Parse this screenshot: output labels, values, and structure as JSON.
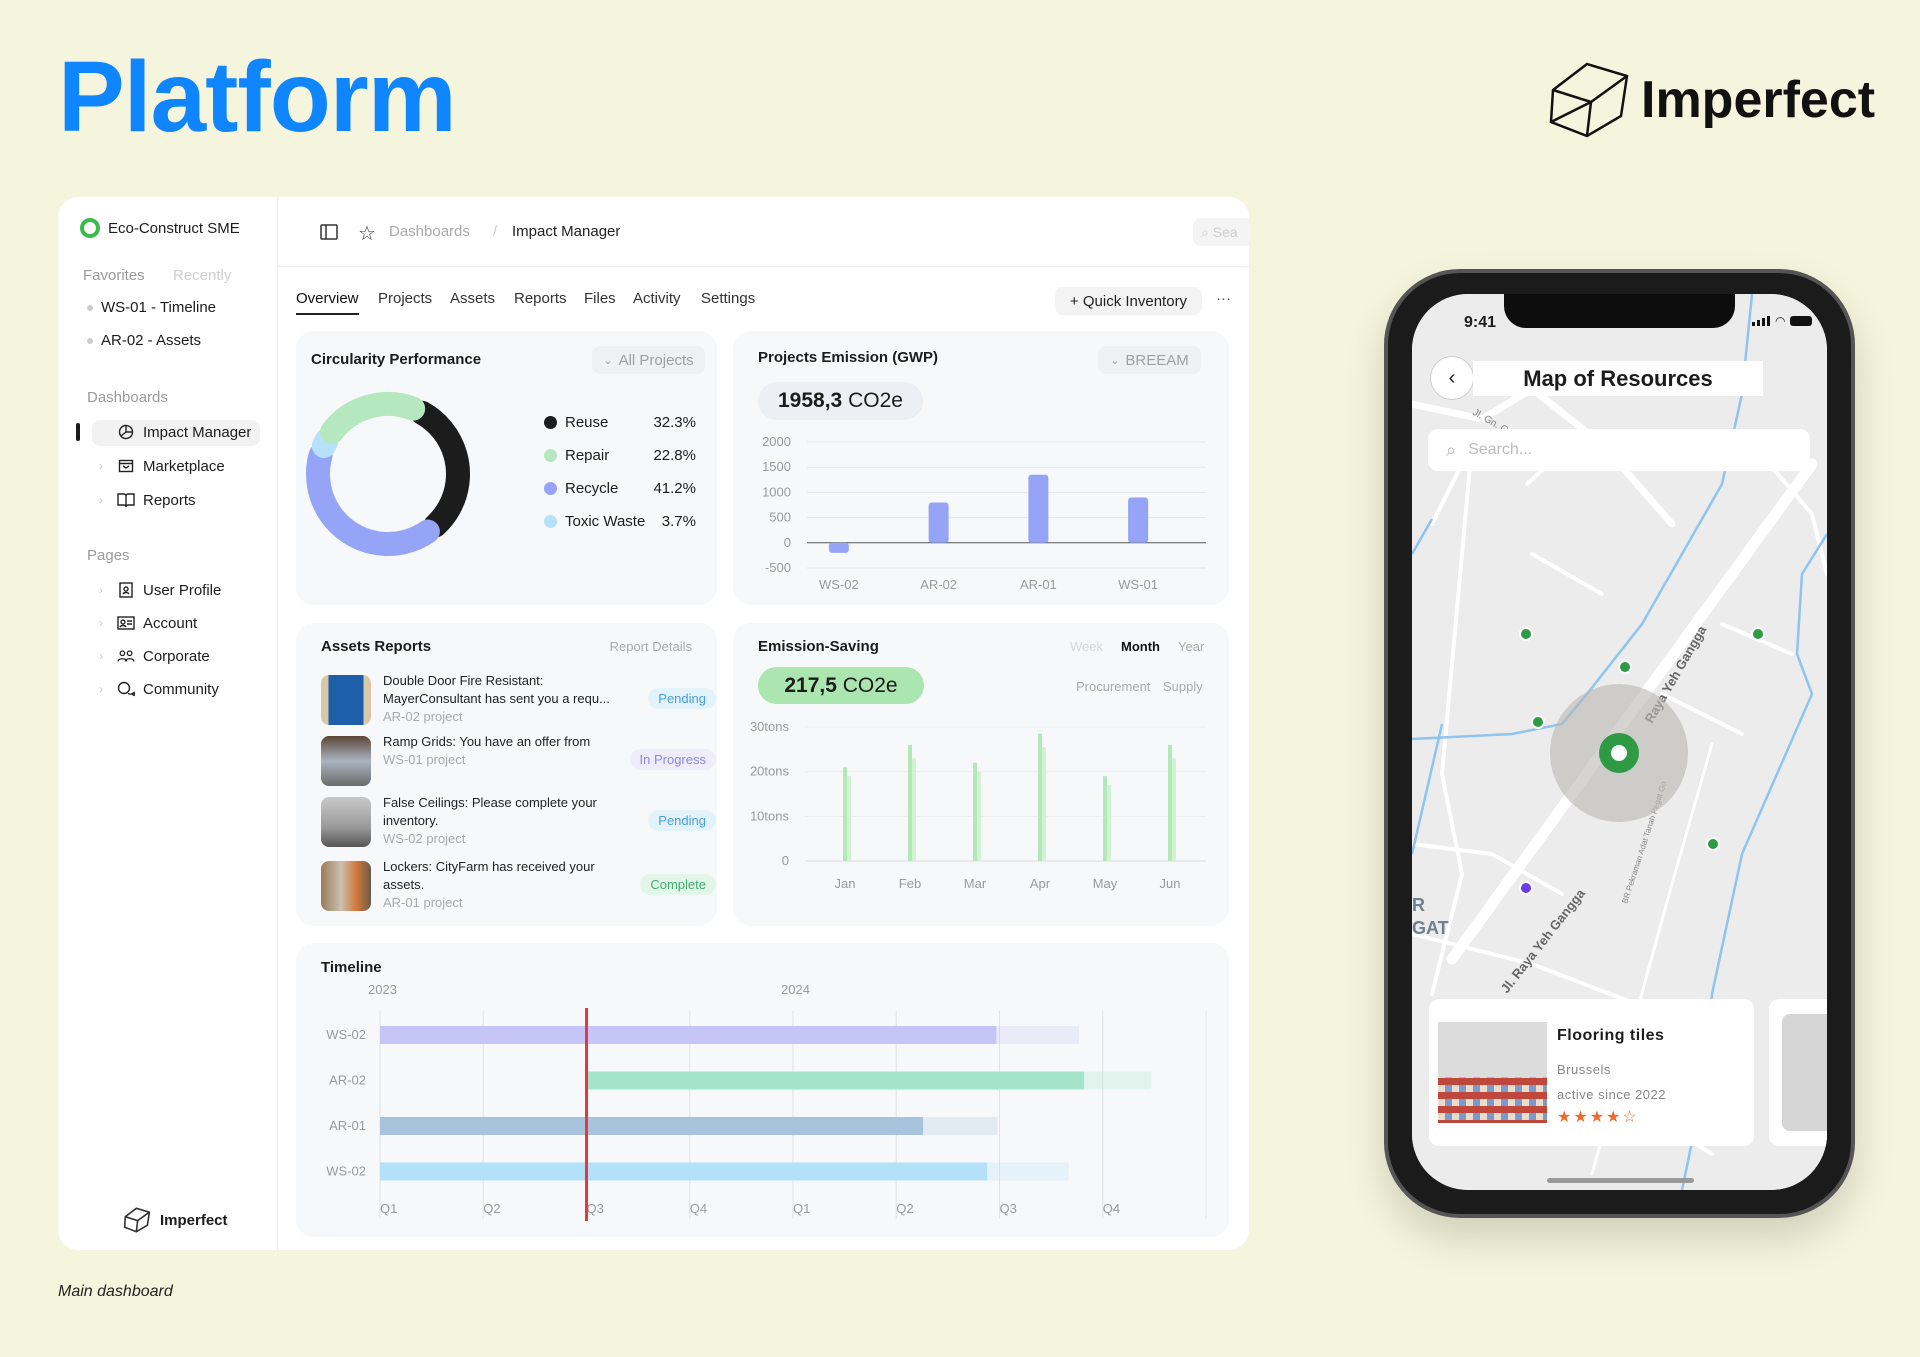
{
  "page": {
    "title": "Platform",
    "brand": "Imperfect",
    "caption": "Main dashboard"
  },
  "sidebar": {
    "org": "Eco-Construct SME",
    "tabs": [
      "Favorites",
      "Recently"
    ],
    "favorites": [
      "WS-01 - Timeline",
      "AR-02 - Assets"
    ],
    "dashboards_heading": "Dashboards",
    "dashboards": [
      {
        "label": "Impact Manager",
        "icon": "pie-chart-icon",
        "active": true
      },
      {
        "label": "Marketplace",
        "icon": "shop-icon"
      },
      {
        "label": "Reports",
        "icon": "book-icon"
      }
    ],
    "pages_heading": "Pages",
    "pages": [
      {
        "label": "User Profile",
        "icon": "id-badge-icon"
      },
      {
        "label": "Account",
        "icon": "id-card-icon"
      },
      {
        "label": "Corporate",
        "icon": "users-icon"
      },
      {
        "label": "Community",
        "icon": "chat-icon"
      }
    ],
    "footer_brand": "Imperfect"
  },
  "header": {
    "breadcrumb": [
      "Dashboards",
      "Impact Manager"
    ],
    "separator": "/",
    "search_placeholder": "Sea"
  },
  "tabs": [
    "Overview",
    "Projects",
    "Assets",
    "Reports",
    "Files",
    "Activity",
    "Settings"
  ],
  "actions": {
    "quick_inventory": "+ Quick Inventory",
    "more": "···"
  },
  "circularity": {
    "title": "Circularity Performance",
    "filter": "All Projects"
  },
  "emission": {
    "title": "Projects Emission (GWP)",
    "filter": "BREEAM",
    "total_value": "1958,3",
    "total_unit": " CO2e"
  },
  "assets": {
    "title": "Assets Reports",
    "link": "Report Details",
    "items": [
      {
        "title": "Double Door Fire Resistant:",
        "body": "MayerConsultant has sent you a requ...",
        "project": "AR-02 project",
        "status": "Pending"
      },
      {
        "title": "Ramp Grids: You have an offer from",
        "body": "",
        "project": "WS-01 project",
        "status": "In Progress"
      },
      {
        "title": "False Ceilings: Please complete your",
        "body": "inventory.",
        "project": "WS-02 project",
        "status": "Pending"
      },
      {
        "title": "Lockers: CityFarm has received your",
        "body": "assets.",
        "project": "AR-01 project",
        "status": "Complete"
      }
    ]
  },
  "saving": {
    "title": "Emission-Saving",
    "periods": [
      "Week",
      "Month",
      "Year"
    ],
    "active_period": "Month",
    "total_value": "217,5",
    "total_unit": " CO2e",
    "filters": [
      "Procurement",
      "Supply"
    ]
  },
  "timeline": {
    "title": "Timeline"
  },
  "colors": {
    "accent": "#0f86ff",
    "reuse": "#1c1c1c",
    "repair": "#b6e8bf",
    "recycle": "#95a4f7",
    "toxic": "#b5e1fb",
    "bar": "#95a4f7",
    "saving_a": "#b3e8b9",
    "saving_b": "#d2f2d4",
    "today": "#e8383d",
    "pending": "#4a9fdc",
    "progress": "#8d86e6",
    "complete": "#3fae6e"
  },
  "chart_data": [
    {
      "type": "pie",
      "title": "Circularity Performance",
      "categories": [
        "Reuse",
        "Repair",
        "Recycle",
        "Toxic Waste"
      ],
      "values": [
        32.3,
        22.8,
        41.2,
        3.7
      ],
      "labels": [
        "32.3%",
        "22.8%",
        "41.2%",
        "3.7%"
      ]
    },
    {
      "type": "bar",
      "title": "Projects Emission (GWP)",
      "categories": [
        "WS-02",
        "AR-02",
        "AR-01",
        "WS-01"
      ],
      "values": [
        -200,
        800,
        1350,
        900
      ],
      "ylim": [
        -500,
        2000
      ],
      "yticks": [
        "2000",
        "1500",
        "1000",
        "500",
        "0",
        "-500"
      ],
      "grid": true
    },
    {
      "type": "bar",
      "title": "Emission-Saving",
      "categories": [
        "Jan",
        "Feb",
        "Mar",
        "Apr",
        "May",
        "Jun"
      ],
      "series": [
        {
          "name": "Procurement",
          "values": [
            21,
            26,
            22,
            28.5,
            19,
            26
          ]
        },
        {
          "name": "Supply",
          "values": [
            19,
            23,
            20,
            25.5,
            17,
            23
          ]
        }
      ],
      "ylim": [
        0,
        30
      ],
      "yticks": [
        "30tons",
        "20tons",
        "10tons",
        "0"
      ],
      "grid": true
    },
    {
      "type": "bar",
      "title": "Timeline",
      "years": [
        "2023",
        "2024"
      ],
      "quarters": [
        "Q1",
        "Q2",
        "Q3",
        "Q4",
        "Q1",
        "Q2",
        "Q3",
        "Q4"
      ],
      "today": "2023 Q3",
      "rows": [
        {
          "name": "WS-02",
          "start": "2023 Q1",
          "end_quarters": 5.97,
          "planned_end_quarters": 6.77,
          "color": "#c5c5f7"
        },
        {
          "name": "AR-02",
          "start": "2023 Q3",
          "start_quarters": 2.0,
          "end_quarters": 6.82,
          "planned_end_quarters": 7.47,
          "color": "#a3e4cb"
        },
        {
          "name": "AR-01",
          "start": "2023 Q1",
          "end_quarters": 5.26,
          "planned_end_quarters": 5.98,
          "color": "#a8c4dc"
        },
        {
          "name": "WS-02",
          "start": "2023 Q1",
          "end_quarters": 5.88,
          "planned_end_quarters": 6.67,
          "color": "#b3e1fa"
        }
      ]
    }
  ],
  "phone": {
    "time": "9:41",
    "title": "Map of Resources",
    "search_placeholder": "Search...",
    "map_labels": [
      "Jl. Gn. Gatur",
      "Jl. Raya Yeh Gangga",
      "Raya Yeh Gangga",
      "BR Pekraman Adat Tanah Pegat Go",
      "R",
      "GAT"
    ],
    "card": {
      "title": "Flooring tiles",
      "city": "Brussels",
      "since": "active since 2022",
      "rating": 4,
      "rating_max": 5
    }
  }
}
